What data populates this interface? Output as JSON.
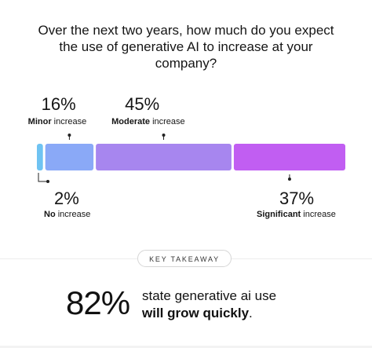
{
  "header": {
    "title": "Over the next two years, how much do you expect the use of generative AI to increase at your company?"
  },
  "chart_data": {
    "type": "bar",
    "orientation": "horizontal-stacked",
    "categories": [
      "No increase",
      "Minor increase",
      "Moderate increase",
      "Significant increase"
    ],
    "values": [
      2,
      16,
      45,
      37
    ],
    "labels": [
      {
        "value_label": "2%",
        "bold": "No",
        "rest": " increase",
        "position": "below"
      },
      {
        "value_label": "16%",
        "bold": "Minor",
        "rest": " increase",
        "position": "above"
      },
      {
        "value_label": "45%",
        "bold": "Moderate",
        "rest": " increase",
        "position": "above"
      },
      {
        "value_label": "37%",
        "bold": "Significant",
        "rest": " increase",
        "position": "below"
      }
    ],
    "colors": [
      "#6fc3f2",
      "#8aa9f7",
      "#a786ef",
      "#c15ef2"
    ],
    "legend": "none",
    "grid": false
  },
  "key_takeaway": {
    "label": "KEY TAKEAWAY",
    "stat": "82%",
    "text_regular": "state generative ai use",
    "text_bold": "will grow quickly",
    "text_end": "."
  }
}
